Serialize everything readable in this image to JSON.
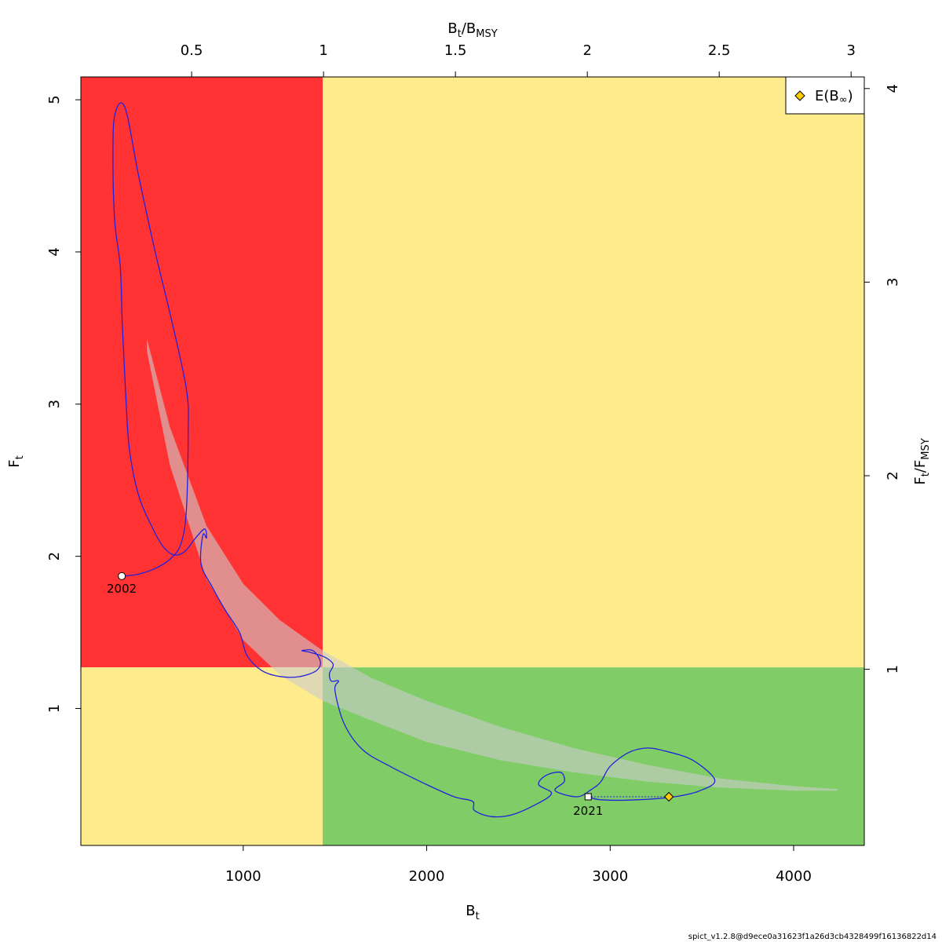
{
  "chart_data": {
    "type": "line",
    "x_axis_bottom": {
      "label": "B",
      "label_sub": "t",
      "ticks": [
        1000,
        2000,
        3000,
        4000
      ],
      "range": [
        115,
        4385
      ]
    },
    "x_axis_top": {
      "label": "B",
      "label_sub": "t",
      "label_suffix": "/B",
      "label_suffix_sub": "MSY",
      "ticks": [
        0.5,
        1,
        1.5,
        2,
        2.5,
        3
      ],
      "tick_labels": [
        "0.5",
        "1",
        "1.5",
        "2",
        "2.5",
        "3"
      ],
      "range": [
        0.08,
        3.05
      ]
    },
    "y_axis_left": {
      "label": "F",
      "label_sub": "t",
      "ticks": [
        1,
        2,
        3,
        4,
        5
      ],
      "range": [
        0.1,
        5.15
      ]
    },
    "y_axis_right": {
      "label": "F",
      "label_sub": "t",
      "label_suffix": "/F",
      "label_suffix_sub": "MSY",
      "ticks": [
        1,
        2,
        3,
        4
      ],
      "range": [
        0.09,
        4.06
      ]
    },
    "reference_points": {
      "Bmsy": 1433,
      "Fmsy": 1.27
    },
    "zone_colors": {
      "overfished_overfishing": "#ff3333",
      "caution": "#feeb8c",
      "healthy": "#80cc66"
    },
    "trajectory_color": "#2222dd",
    "confidence_region_color": "#cccccc",
    "start_year": "2002",
    "end_year": "2021",
    "series": [
      {
        "type": "trajectory",
        "points": [
          [
            338,
            1.87
          ],
          [
            420,
            1.88
          ],
          [
            520,
            1.92
          ],
          [
            600,
            1.98
          ],
          [
            660,
            2.08
          ],
          [
            690,
            2.3
          ],
          [
            700,
            2.8
          ],
          [
            690,
            3.1
          ],
          [
            600,
            3.6
          ],
          [
            520,
            4.0
          ],
          [
            430,
            4.5
          ],
          [
            355,
            4.95
          ],
          [
            300,
            4.9
          ],
          [
            290,
            4.6
          ],
          [
            300,
            4.2
          ],
          [
            330,
            3.9
          ],
          [
            340,
            3.55
          ],
          [
            350,
            3.3
          ],
          [
            360,
            3.05
          ],
          [
            380,
            2.7
          ],
          [
            430,
            2.4
          ],
          [
            500,
            2.2
          ],
          [
            560,
            2.07
          ],
          [
            620,
            2.01
          ],
          [
            680,
            2.03
          ],
          [
            740,
            2.12
          ],
          [
            790,
            2.18
          ],
          [
            800,
            2.12
          ],
          [
            780,
            2.14
          ],
          [
            770,
            1.95
          ],
          [
            830,
            1.8
          ],
          [
            900,
            1.65
          ],
          [
            980,
            1.5
          ],
          [
            1020,
            1.35
          ],
          [
            1100,
            1.25
          ],
          [
            1200,
            1.21
          ],
          [
            1310,
            1.21
          ],
          [
            1400,
            1.25
          ],
          [
            1420,
            1.31
          ],
          [
            1380,
            1.38
          ],
          [
            1320,
            1.38
          ],
          [
            1360,
            1.37
          ],
          [
            1440,
            1.34
          ],
          [
            1490,
            1.29
          ],
          [
            1470,
            1.23
          ],
          [
            1480,
            1.18
          ],
          [
            1520,
            1.18
          ],
          [
            1500,
            1.12
          ],
          [
            1550,
            0.9
          ],
          [
            1650,
            0.73
          ],
          [
            1800,
            0.62
          ],
          [
            2000,
            0.5
          ],
          [
            2150,
            0.42
          ],
          [
            2250,
            0.39
          ],
          [
            2260,
            0.33
          ],
          [
            2350,
            0.29
          ],
          [
            2460,
            0.3
          ],
          [
            2580,
            0.36
          ],
          [
            2680,
            0.44
          ],
          [
            2610,
            0.5
          ],
          [
            2650,
            0.56
          ],
          [
            2730,
            0.58
          ],
          [
            2750,
            0.52
          ],
          [
            2700,
            0.46
          ],
          [
            2820,
            0.42
          ],
          [
            2900,
            0.47
          ],
          [
            2950,
            0.52
          ],
          [
            3000,
            0.62
          ],
          [
            3100,
            0.71
          ],
          [
            3200,
            0.74
          ],
          [
            3300,
            0.72
          ],
          [
            3450,
            0.66
          ],
          [
            3570,
            0.53
          ],
          [
            3490,
            0.46
          ],
          [
            3350,
            0.42
          ],
          [
            3150,
            0.4
          ],
          [
            2950,
            0.4
          ],
          [
            2880,
            0.42
          ]
        ]
      },
      {
        "type": "confidence_region",
        "upper": [
          [
            475,
            3.43
          ],
          [
            600,
            2.85
          ],
          [
            800,
            2.2
          ],
          [
            1000,
            1.82
          ],
          [
            1200,
            1.58
          ],
          [
            1433,
            1.38
          ],
          [
            1700,
            1.2
          ],
          [
            2000,
            1.05
          ],
          [
            2400,
            0.88
          ],
          [
            2800,
            0.74
          ],
          [
            3200,
            0.63
          ],
          [
            3600,
            0.54
          ],
          [
            4000,
            0.49
          ],
          [
            4240,
            0.47
          ]
        ],
        "lower": [
          [
            4240,
            0.46
          ],
          [
            4000,
            0.46
          ],
          [
            3600,
            0.48
          ],
          [
            3200,
            0.52
          ],
          [
            2800,
            0.58
          ],
          [
            2400,
            0.66
          ],
          [
            2000,
            0.78
          ],
          [
            1700,
            0.92
          ],
          [
            1433,
            1.05
          ],
          [
            1200,
            1.22
          ],
          [
            1000,
            1.45
          ],
          [
            800,
            1.85
          ],
          [
            600,
            2.6
          ],
          [
            475,
            3.35
          ]
        ]
      },
      {
        "type": "projection",
        "from": [
          2880,
          0.42
        ],
        "to": [
          3320,
          0.42
        ]
      }
    ],
    "legend": {
      "placement": "top-right",
      "entries": [
        "E(B",
        "∞",
        ")"
      ]
    }
  },
  "footer": {
    "version_text": "spict_v1.2.8@d9ece0a31623f1a26d3cb4328499f16136822d14"
  }
}
